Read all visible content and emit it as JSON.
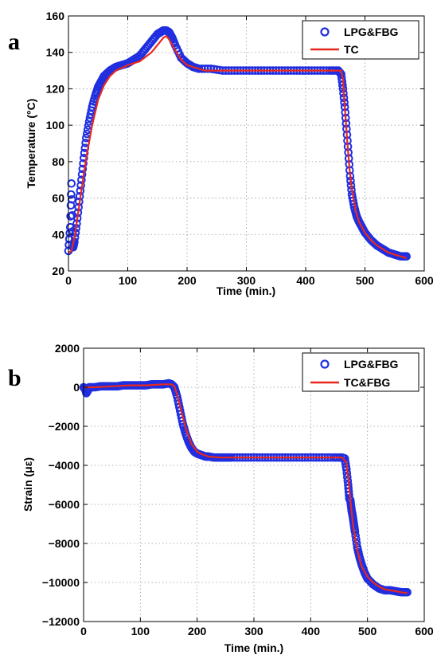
{
  "panels": [
    {
      "letter": "a"
    },
    {
      "letter": "b"
    }
  ],
  "colors": {
    "marker": "#1f2fe0",
    "line": "#e8281e",
    "grid": "#9a9a9a",
    "axis": "#000000"
  },
  "chart_data": [
    {
      "type": "line",
      "panel": "a",
      "xlabel": "Time (min.)",
      "ylabel": "Temperature (°C)",
      "xlim": [
        0,
        600
      ],
      "ylim": [
        20,
        160
      ],
      "xticks": [
        "0",
        "100",
        "200",
        "300",
        "400",
        "500",
        "600"
      ],
      "yticks": [
        "20",
        "40",
        "60",
        "80",
        "100",
        "120",
        "140",
        "160"
      ],
      "grid": true,
      "legend_position": "top-right",
      "series": [
        {
          "name": "LPG&FBG",
          "style": "circle-markers",
          "x": [
            0,
            3,
            5,
            8,
            10,
            14,
            18,
            22,
            26,
            30,
            35,
            40,
            45,
            50,
            55,
            60,
            70,
            80,
            90,
            100,
            110,
            120,
            130,
            140,
            150,
            155,
            160,
            165,
            170,
            175,
            180,
            190,
            200,
            210,
            220,
            240,
            260,
            280,
            300,
            320,
            340,
            360,
            380,
            400,
            420,
            440,
            455,
            460,
            463,
            466,
            469,
            472,
            475,
            478,
            482,
            486,
            490,
            495,
            500,
            510,
            520,
            530,
            540,
            550,
            560,
            570
          ],
          "y": [
            31,
            44,
            68,
            33,
            36,
            46,
            58,
            70,
            82,
            93,
            102,
            110,
            116,
            121,
            124,
            127,
            130,
            132,
            133,
            134,
            136,
            138,
            142,
            146,
            150,
            151,
            152,
            152,
            151,
            148,
            144,
            137,
            134,
            132,
            131,
            131,
            130,
            130,
            130,
            130,
            130,
            130,
            130,
            130,
            130,
            130,
            130,
            128,
            120,
            110,
            98,
            85,
            72,
            62,
            55,
            50,
            47,
            44,
            41,
            37,
            34,
            32,
            30,
            29,
            28,
            28
          ]
        },
        {
          "name": "TC",
          "style": "line",
          "x": [
            0,
            5,
            10,
            20,
            30,
            40,
            50,
            60,
            70,
            80,
            100,
            120,
            140,
            150,
            160,
            165,
            170,
            180,
            190,
            200,
            210,
            220,
            230,
            250,
            300,
            350,
            400,
            450,
            460,
            463,
            466,
            470,
            474,
            478,
            482,
            486,
            490,
            500,
            510,
            520,
            530,
            540,
            550,
            560,
            570
          ],
          "y": [
            30,
            31,
            38,
            60,
            82,
            100,
            114,
            122,
            127,
            130,
            133,
            135,
            140,
            144,
            148,
            149,
            147,
            141,
            136,
            133,
            132,
            131,
            130,
            130,
            130,
            130,
            130,
            130,
            130,
            125,
            110,
            92,
            76,
            65,
            57,
            51,
            47,
            41,
            37,
            34,
            32,
            30,
            29,
            28,
            27
          ]
        }
      ]
    },
    {
      "type": "line",
      "panel": "b",
      "xlabel": "Time (min.)",
      "ylabel": "Strain (με)",
      "xlim": [
        0,
        600
      ],
      "ylim": [
        -12000,
        2000
      ],
      "xticks": [
        "0",
        "100",
        "200",
        "300",
        "400",
        "500",
        "600"
      ],
      "yticks": [
        "2000",
        "0",
        "−2000",
        "−4000",
        "−6000",
        "−8000",
        "−10000",
        "−12000"
      ],
      "grid": true,
      "legend_position": "top-right",
      "series": [
        {
          "name": "LPG&FBG",
          "style": "circle-markers",
          "x": [
            0,
            3,
            5,
            8,
            10,
            20,
            30,
            40,
            50,
            60,
            70,
            80,
            90,
            100,
            110,
            120,
            130,
            140,
            150,
            155,
            160,
            165,
            170,
            175,
            180,
            185,
            190,
            195,
            200,
            205,
            210,
            215,
            220,
            230,
            240,
            250,
            260,
            280,
            300,
            320,
            340,
            360,
            380,
            400,
            420,
            440,
            455,
            460,
            463,
            466,
            468,
            470,
            472,
            474,
            476,
            478,
            482,
            486,
            490,
            495,
            500,
            510,
            520,
            530,
            540,
            550,
            560,
            570
          ],
          "y": [
            0,
            -100,
            -300,
            -150,
            0,
            0,
            50,
            50,
            50,
            50,
            100,
            100,
            100,
            100,
            100,
            150,
            150,
            150,
            200,
            150,
            0,
            -500,
            -1200,
            -1900,
            -2400,
            -2800,
            -3100,
            -3300,
            -3400,
            -3450,
            -3500,
            -3550,
            -3550,
            -3600,
            -3600,
            -3600,
            -3600,
            -3600,
            -3600,
            -3600,
            -3600,
            -3600,
            -3600,
            -3600,
            -3600,
            -3600,
            -3600,
            -3650,
            -4200,
            -5000,
            -5700,
            -5800,
            -6300,
            -6600,
            -7000,
            -7400,
            -8200,
            -8700,
            -9100,
            -9500,
            -9800,
            -10100,
            -10300,
            -10400,
            -10400,
            -10450,
            -10500,
            -10500
          ]
        },
        {
          "name": "TC&FBG",
          "style": "line",
          "x": [
            0,
            20,
            50,
            80,
            110,
            140,
            155,
            160,
            165,
            170,
            180,
            190,
            200,
            210,
            220,
            240,
            300,
            400,
            455,
            462,
            466,
            470,
            474,
            478,
            482,
            486,
            490,
            500,
            510,
            520,
            530,
            540,
            550,
            560,
            570
          ],
          "y": [
            0,
            0,
            50,
            100,
            100,
            150,
            150,
            50,
            -400,
            -1000,
            -2100,
            -2900,
            -3300,
            -3450,
            -3550,
            -3600,
            -3600,
            -3600,
            -3600,
            -3800,
            -4600,
            -5800,
            -6900,
            -7700,
            -8300,
            -8800,
            -9200,
            -9700,
            -10000,
            -10200,
            -10350,
            -10400,
            -10450,
            -10500,
            -10550
          ]
        }
      ]
    }
  ]
}
